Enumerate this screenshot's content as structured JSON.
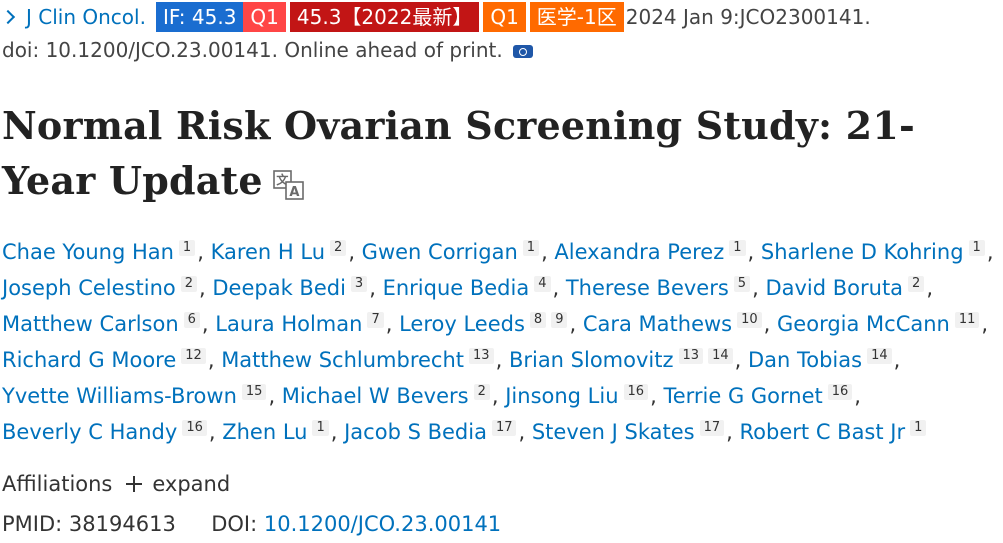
{
  "journal": {
    "name": "J Clin Oncol.",
    "if_badge": "IF: 45.3",
    "q1_badge": "Q1",
    "if_year_badge": "45.3【2022最新】",
    "q1_badge_2": "Q1",
    "category_badge": "医学-1区",
    "date": "2024 Jan 9:JCO2300141."
  },
  "doi_line": "doi: 10.1200/JCO.23.00141. Online ahead of print.",
  "title": "Normal Risk Ovarian Screening Study: 21-Year Update",
  "authors": [
    {
      "name": "Chae Young Han",
      "aff": [
        "1"
      ]
    },
    {
      "name": "Karen H Lu",
      "aff": [
        "2"
      ]
    },
    {
      "name": "Gwen Corrigan",
      "aff": [
        "1"
      ]
    },
    {
      "name": "Alexandra Perez",
      "aff": [
        "1"
      ]
    },
    {
      "name": "Sharlene D Kohring",
      "aff": [
        "1"
      ]
    },
    {
      "name": "Joseph Celestino",
      "aff": [
        "2"
      ]
    },
    {
      "name": "Deepak Bedi",
      "aff": [
        "3"
      ]
    },
    {
      "name": "Enrique Bedia",
      "aff": [
        "4"
      ]
    },
    {
      "name": "Therese Bevers",
      "aff": [
        "5"
      ]
    },
    {
      "name": "David Boruta",
      "aff": [
        "2"
      ]
    },
    {
      "name": "Matthew Carlson",
      "aff": [
        "6"
      ]
    },
    {
      "name": "Laura Holman",
      "aff": [
        "7"
      ]
    },
    {
      "name": "Leroy Leeds",
      "aff": [
        "8",
        "9"
      ]
    },
    {
      "name": "Cara Mathews",
      "aff": [
        "10"
      ]
    },
    {
      "name": "Georgia McCann",
      "aff": [
        "11"
      ]
    },
    {
      "name": "Richard G Moore",
      "aff": [
        "12"
      ]
    },
    {
      "name": "Matthew Schlumbrecht",
      "aff": [
        "13"
      ]
    },
    {
      "name": "Brian Slomovitz",
      "aff": [
        "13",
        "14"
      ]
    },
    {
      "name": "Dan Tobias",
      "aff": [
        "14"
      ]
    },
    {
      "name": "Yvette Williams-Brown",
      "aff": [
        "15"
      ]
    },
    {
      "name": "Michael W Bevers",
      "aff": [
        "2"
      ]
    },
    {
      "name": "Jinsong Liu",
      "aff": [
        "16"
      ]
    },
    {
      "name": "Terrie G Gornet",
      "aff": [
        "16"
      ]
    },
    {
      "name": "Beverly C Handy",
      "aff": [
        "16"
      ]
    },
    {
      "name": "Zhen Lu",
      "aff": [
        "1"
      ]
    },
    {
      "name": "Jacob S Bedia",
      "aff": [
        "17"
      ]
    },
    {
      "name": "Steven J Skates",
      "aff": [
        "17"
      ]
    },
    {
      "name": "Robert C Bast Jr",
      "aff": [
        "1"
      ]
    }
  ],
  "author_rows": [
    5,
    5,
    5,
    4,
    4,
    5
  ],
  "affiliations": {
    "label": "Affiliations",
    "expand_label": "expand"
  },
  "ids": {
    "pmid_label": "PMID:",
    "pmid": "38194613",
    "doi_label": "DOI:",
    "doi": "10.1200/JCO.23.00141"
  },
  "colors": {
    "link": "#0071bc",
    "if_badge": "#1a6dd0",
    "q1_badge": "#ff4646",
    "year_badge": "#c21515",
    "orange_badge": "#ff6a00"
  },
  "icons": {
    "chevron": "chevron-right-icon",
    "camera": "camera-icon",
    "translate": "translate-icon",
    "plus": "plus-icon"
  }
}
